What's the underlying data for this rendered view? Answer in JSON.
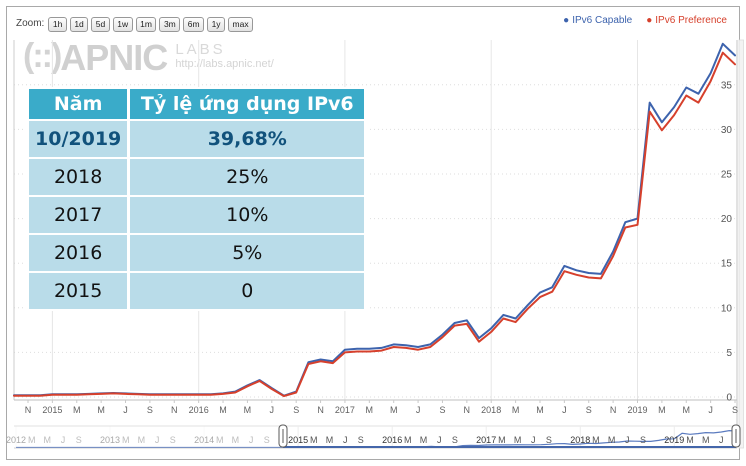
{
  "header": {
    "zoom_label": "Zoom:",
    "zoom_buttons": [
      "1h",
      "1d",
      "5d",
      "1w",
      "1m",
      "3m",
      "6m",
      "1y",
      "max"
    ],
    "legend": [
      {
        "label": "IPv6 Capable",
        "color": "#3d63ad"
      },
      {
        "label": "IPv6 Preference",
        "color": "#d6402c"
      }
    ]
  },
  "watermark": {
    "logo": "(::)",
    "brand": "APNIC",
    "sub": "LABS",
    "url": "http://labs.apnic.net/"
  },
  "table": {
    "headers": [
      "Năm",
      "Tỷ lệ ứng dụng IPv6"
    ],
    "rows": [
      {
        "year": "10/2019",
        "value": "39,68%",
        "highlight": true
      },
      {
        "year": "2018",
        "value": "25%",
        "highlight": false
      },
      {
        "year": "2017",
        "value": "10%",
        "highlight": false
      },
      {
        "year": "2016",
        "value": "5%",
        "highlight": false
      },
      {
        "year": "2015",
        "value": "0",
        "highlight": false
      }
    ],
    "colors": {
      "header_bg": "#3aabc9",
      "row_bg": "#b9dce9",
      "highlight_text": "#11527c"
    }
  },
  "chart_data": {
    "type": "line",
    "title": "",
    "x_unit": "month",
    "x_start": "Nov 2014",
    "x_end": "Sep 2019",
    "x_labels": [
      "N",
      "2015",
      "M",
      "M",
      "J",
      "S",
      "N",
      "2016",
      "M",
      "M",
      "J",
      "S",
      "N",
      "2017",
      "M",
      "M",
      "J",
      "S",
      "N",
      "2018",
      "M",
      "M",
      "J",
      "S",
      "N",
      "2019",
      "M",
      "M",
      "J",
      "S"
    ],
    "y_ticks": [
      0,
      5,
      10,
      15,
      20,
      25,
      30,
      35
    ],
    "ylim": [
      0,
      40
    ],
    "ylabel": "",
    "xlabel": "",
    "grid": true,
    "legend_position": "top-right",
    "series": [
      {
        "name": "IPv6 Capable",
        "color": "#3d63ad",
        "values": [
          0.2,
          0.2,
          0.3,
          0.3,
          0.3,
          0.35,
          0.4,
          0.45,
          0.4,
          0.35,
          0.3,
          0.3,
          0.3,
          0.3,
          0.3,
          0.3,
          0.4,
          0.6,
          1.3,
          1.9,
          1.0,
          0.15,
          0.6,
          3.9,
          4.2,
          4.0,
          5.3,
          5.4,
          5.4,
          5.5,
          5.9,
          5.8,
          5.6,
          5.9,
          7.0,
          8.3,
          8.6,
          6.6,
          7.7,
          9.2,
          8.8,
          10.3,
          11.7,
          12.3,
          14.7,
          14.2,
          13.9,
          13.8,
          16.3,
          19.6,
          20.0,
          33.0,
          30.8,
          32.5,
          34.7,
          34.0,
          36.3,
          39.6,
          38.3
        ]
      },
      {
        "name": "IPv6 Preference",
        "color": "#d6402c",
        "values": [
          0.15,
          0.15,
          0.25,
          0.25,
          0.25,
          0.3,
          0.35,
          0.4,
          0.35,
          0.3,
          0.25,
          0.25,
          0.25,
          0.25,
          0.25,
          0.25,
          0.35,
          0.5,
          1.2,
          1.8,
          0.9,
          0.1,
          0.5,
          3.7,
          4.0,
          3.8,
          5.0,
          5.1,
          5.1,
          5.2,
          5.6,
          5.5,
          5.3,
          5.6,
          6.7,
          8.0,
          8.2,
          6.2,
          7.3,
          8.8,
          8.4,
          9.9,
          11.2,
          11.8,
          14.1,
          13.7,
          13.4,
          13.3,
          15.8,
          19.0,
          19.3,
          32.0,
          29.9,
          31.6,
          33.8,
          33.0,
          35.4,
          38.6,
          37.3
        ]
      }
    ]
  },
  "navigator": {
    "years": [
      "2012",
      "2013",
      "2014",
      "2015",
      "2016",
      "2017",
      "2018",
      "2019"
    ],
    "month_labels": [
      "M",
      "M",
      "J",
      "S"
    ],
    "selected_range_start": "Nov 2014",
    "selected_range_end": "Sep 2019"
  }
}
